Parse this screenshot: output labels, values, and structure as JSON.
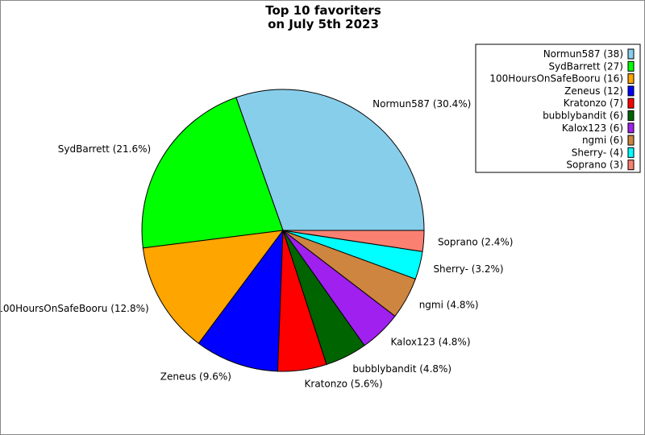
{
  "chart_data": {
    "type": "pie",
    "title": [
      "Top 10 favoriters",
      "on July 5th 2023"
    ],
    "start_angle_deg": 0,
    "direction": "counterclockwise",
    "legend_position": "top-right",
    "slices": [
      {
        "name": "Normun587",
        "value": 38,
        "percent": "30.4%",
        "color": "#87ceeb"
      },
      {
        "name": "SydBarrett",
        "value": 27,
        "percent": "21.6%",
        "color": "#00ff00"
      },
      {
        "name": "100HoursOnSafeBooru",
        "value": 16,
        "percent": "12.8%",
        "color": "#ffa500"
      },
      {
        "name": "Zeneus",
        "value": 12,
        "percent": "9.6%",
        "color": "#0000ff"
      },
      {
        "name": "Kratonzo",
        "value": 7,
        "percent": "5.6%",
        "color": "#ff0000"
      },
      {
        "name": "bubblybandit",
        "value": 6,
        "percent": "4.8%",
        "color": "#006400"
      },
      {
        "name": "Kalox123",
        "value": 6,
        "percent": "4.8%",
        "color": "#a020f0"
      },
      {
        "name": "ngmi",
        "value": 6,
        "percent": "4.8%",
        "color": "#cd853f"
      },
      {
        "name": "Sherry-",
        "value": 4,
        "percent": "3.2%",
        "color": "#00ffff"
      },
      {
        "name": "Soprano",
        "value": 3,
        "percent": "2.4%",
        "color": "#fa8072"
      }
    ]
  }
}
